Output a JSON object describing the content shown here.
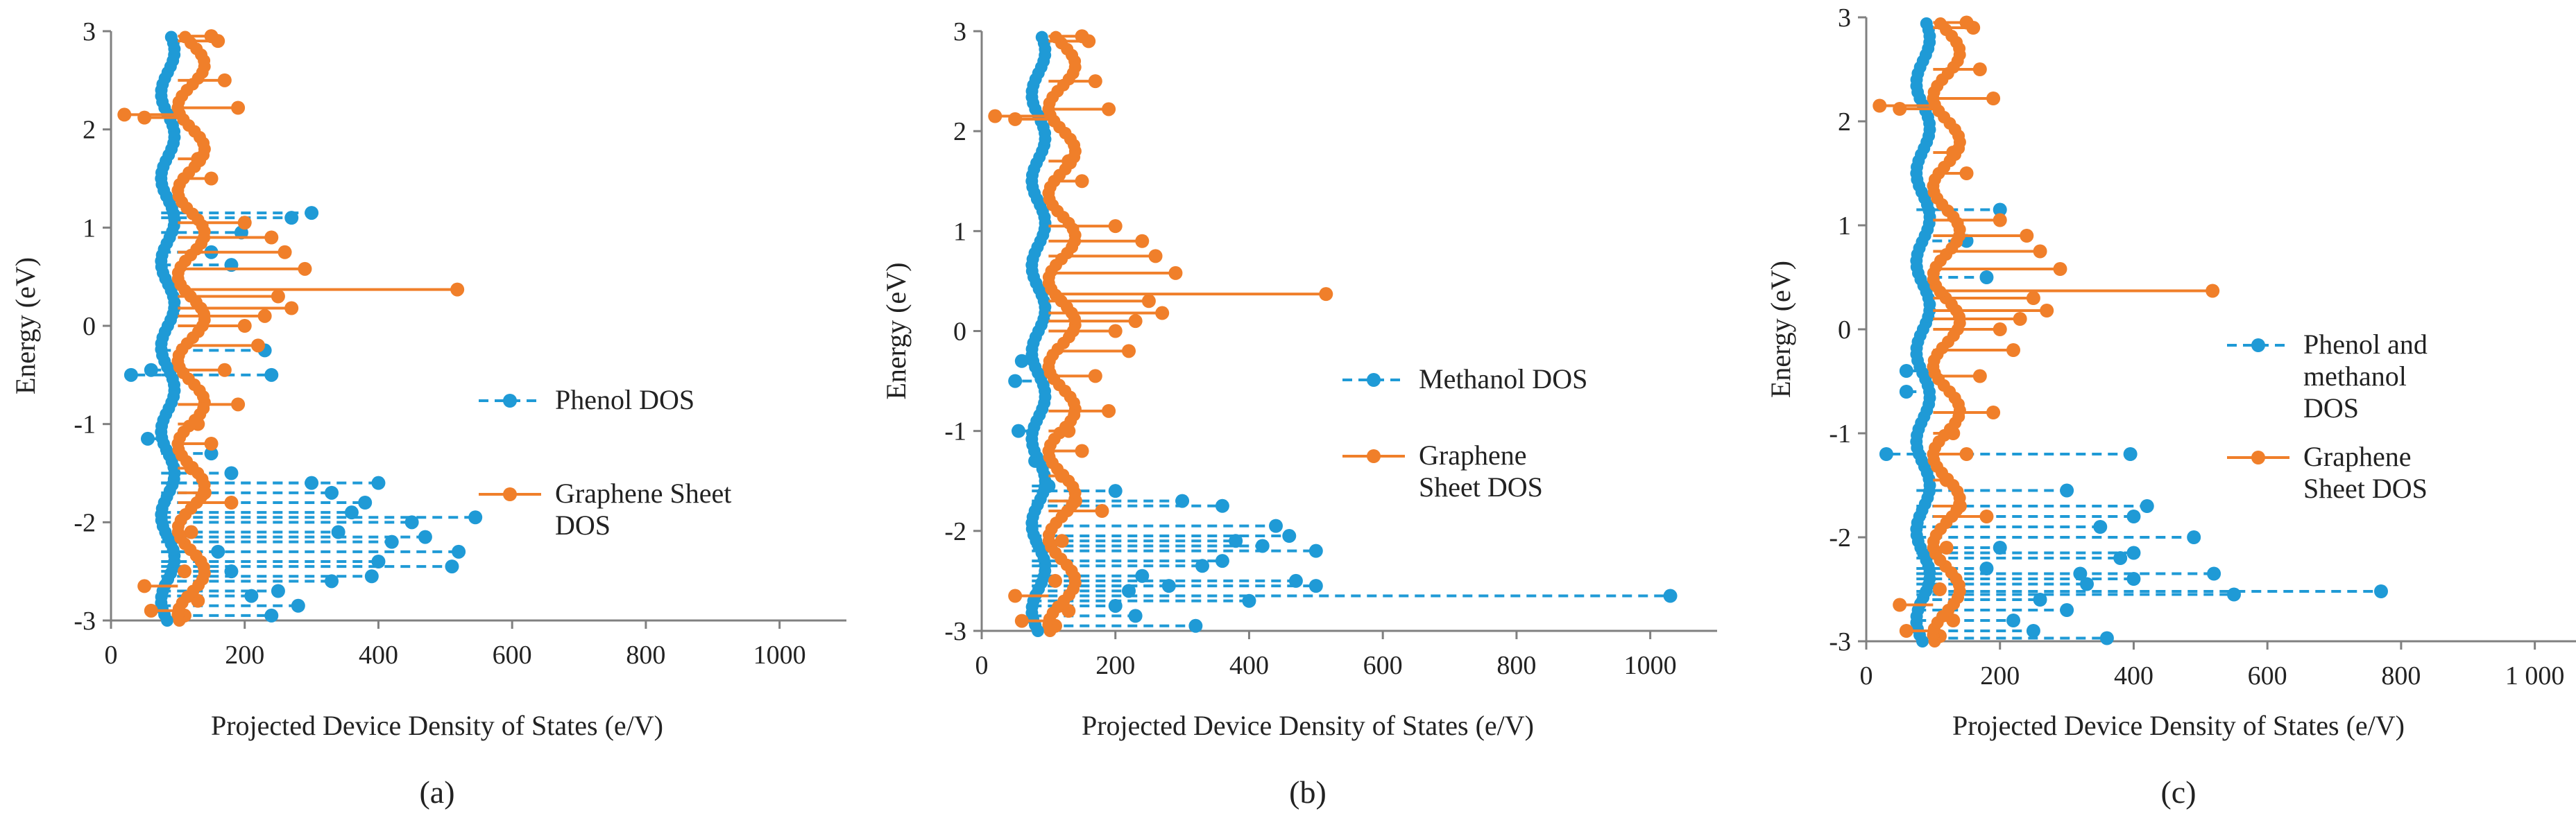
{
  "colors": {
    "phenol_like": "#1f9ad6",
    "graphene": "#f07f2a",
    "axis": "#808080"
  },
  "chart_data": [
    {
      "type": "scatter",
      "panel_label": "(a)",
      "xlabel": "Projected Device Density of States (e/V)",
      "ylabel": "Energy (eV)",
      "xlim": [
        0,
        1100
      ],
      "ylim": [
        -3,
        3
      ],
      "xticks": [
        "0",
        "200",
        "400",
        "600",
        "800",
        "1000"
      ],
      "yticks": [
        "-3",
        "-2",
        "-1",
        "0",
        "1",
        "2",
        "3"
      ],
      "legend_position": "right",
      "series": [
        {
          "name": "Phenol DOS",
          "style": "dashed-marker",
          "color": "#1f9ad6",
          "points": [
            [
              30,
              -0.5
            ],
            [
              60,
              -0.45
            ],
            [
              240,
              -0.5
            ],
            [
              230,
              -0.25
            ],
            [
              150,
              0.75
            ],
            [
              195,
              0.95
            ],
            [
              270,
              1.1
            ],
            [
              300,
              1.15
            ],
            [
              180,
              0.62
            ],
            [
              55,
              -1.15
            ],
            [
              150,
              -1.3
            ],
            [
              180,
              -1.5
            ],
            [
              300,
              -1.6
            ],
            [
              400,
              -1.6
            ],
            [
              330,
              -1.7
            ],
            [
              380,
              -1.8
            ],
            [
              360,
              -1.9
            ],
            [
              545,
              -1.95
            ],
            [
              450,
              -2.0
            ],
            [
              340,
              -2.1
            ],
            [
              470,
              -2.15
            ],
            [
              420,
              -2.2
            ],
            [
              520,
              -2.3
            ],
            [
              400,
              -2.4
            ],
            [
              510,
              -2.45
            ],
            [
              390,
              -2.55
            ],
            [
              330,
              -2.6
            ],
            [
              250,
              -2.7
            ],
            [
              210,
              -2.75
            ],
            [
              280,
              -2.85
            ],
            [
              240,
              -2.95
            ],
            [
              180,
              -2.5
            ],
            [
              160,
              -2.3
            ]
          ]
        },
        {
          "name": "Graphene Sheet DOS",
          "style": "solid-marker",
          "color": "#f07f2a",
          "points": [
            [
              20,
              2.15
            ],
            [
              50,
              2.12
            ],
            [
              190,
              2.22
            ],
            [
              170,
              2.5
            ],
            [
              160,
              2.9
            ],
            [
              150,
              2.95
            ],
            [
              130,
              1.7
            ],
            [
              150,
              1.5
            ],
            [
              200,
              1.05
            ],
            [
              240,
              0.9
            ],
            [
              260,
              0.75
            ],
            [
              290,
              0.58
            ],
            [
              518,
              0.37
            ],
            [
              250,
              0.3
            ],
            [
              270,
              0.18
            ],
            [
              230,
              0.1
            ],
            [
              200,
              0.0
            ],
            [
              220,
              -0.2
            ],
            [
              170,
              -0.45
            ],
            [
              190,
              -0.8
            ],
            [
              130,
              -1.0
            ],
            [
              150,
              -1.2
            ],
            [
              120,
              -1.45
            ],
            [
              140,
              -1.7
            ],
            [
              180,
              -1.8
            ],
            [
              120,
              -2.1
            ],
            [
              110,
              -2.5
            ],
            [
              50,
              -2.65
            ],
            [
              130,
              -2.8
            ],
            [
              110,
              -2.95
            ],
            [
              60,
              -2.9
            ]
          ]
        }
      ]
    },
    {
      "type": "scatter",
      "panel_label": "(b)",
      "xlabel": "Projected Device Density of States (e/V)",
      "ylabel": "Energy (eV)",
      "xlim": [
        0,
        1100
      ],
      "ylim": [
        -3,
        3
      ],
      "xticks": [
        "0",
        "200",
        "400",
        "600",
        "800",
        "1000"
      ],
      "yticks": [
        "-3",
        "-2",
        "-1",
        "0",
        "1",
        "2",
        "3"
      ],
      "legend_position": "right",
      "series": [
        {
          "name": "Methanol DOS",
          "style": "dashed-marker",
          "color": "#1f9ad6",
          "points": [
            [
              60,
              -0.3
            ],
            [
              50,
              -0.5
            ],
            [
              55,
              -1.0
            ],
            [
              80,
              -1.3
            ],
            [
              100,
              -1.55
            ],
            [
              200,
              -1.6
            ],
            [
              300,
              -1.7
            ],
            [
              360,
              -1.75
            ],
            [
              440,
              -1.95
            ],
            [
              460,
              -2.05
            ],
            [
              380,
              -2.1
            ],
            [
              420,
              -2.15
            ],
            [
              500,
              -2.2
            ],
            [
              360,
              -2.3
            ],
            [
              330,
              -2.35
            ],
            [
              470,
              -2.5
            ],
            [
              500,
              -2.55
            ],
            [
              280,
              -2.55
            ],
            [
              220,
              -2.6
            ],
            [
              1030,
              -2.65
            ],
            [
              400,
              -2.7
            ],
            [
              200,
              -2.75
            ],
            [
              230,
              -2.85
            ],
            [
              320,
              -2.95
            ],
            [
              240,
              -2.45
            ]
          ]
        },
        {
          "name": "Graphene Sheet DOS",
          "style": "solid-marker",
          "color": "#f07f2a",
          "points": [
            [
              20,
              2.15
            ],
            [
              50,
              2.12
            ],
            [
              190,
              2.22
            ],
            [
              170,
              2.5
            ],
            [
              160,
              2.9
            ],
            [
              150,
              2.95
            ],
            [
              130,
              1.7
            ],
            [
              150,
              1.5
            ],
            [
              200,
              1.05
            ],
            [
              240,
              0.9
            ],
            [
              260,
              0.75
            ],
            [
              290,
              0.58
            ],
            [
              515,
              0.37
            ],
            [
              250,
              0.3
            ],
            [
              270,
              0.18
            ],
            [
              230,
              0.1
            ],
            [
              200,
              0.0
            ],
            [
              220,
              -0.2
            ],
            [
              170,
              -0.45
            ],
            [
              190,
              -0.8
            ],
            [
              130,
              -1.0
            ],
            [
              150,
              -1.2
            ],
            [
              120,
              -1.45
            ],
            [
              140,
              -1.7
            ],
            [
              180,
              -1.8
            ],
            [
              120,
              -2.1
            ],
            [
              110,
              -2.5
            ],
            [
              50,
              -2.65
            ],
            [
              130,
              -2.8
            ],
            [
              110,
              -2.95
            ],
            [
              60,
              -2.9
            ]
          ]
        }
      ]
    },
    {
      "type": "scatter",
      "panel_label": "(c)",
      "xlabel": "Projected Device Density of States (e/V)",
      "ylabel": "Energy (eV)",
      "xlim": [
        0,
        1100
      ],
      "ylim": [
        -3,
        3
      ],
      "xticks": [
        "0",
        "200",
        "400",
        "600",
        "800",
        "1 000"
      ],
      "yticks": [
        "-3",
        "-2",
        "-1",
        "0",
        "1",
        "2",
        "3"
      ],
      "legend_position": "right",
      "series": [
        {
          "name": "Phenol and methanol DOS",
          "style": "dashed-marker",
          "color": "#1f9ad6",
          "points": [
            [
              30,
              -1.2
            ],
            [
              395,
              -1.2
            ],
            [
              60,
              -0.6
            ],
            [
              60,
              -0.4
            ],
            [
              200,
              1.15
            ],
            [
              150,
              0.85
            ],
            [
              180,
              0.5
            ],
            [
              300,
              -1.55
            ],
            [
              400,
              -1.8
            ],
            [
              420,
              -1.7
            ],
            [
              350,
              -1.9
            ],
            [
              490,
              -2.0
            ],
            [
              400,
              -2.15
            ],
            [
              380,
              -2.2
            ],
            [
              320,
              -2.35
            ],
            [
              520,
              -2.35
            ],
            [
              400,
              -2.4
            ],
            [
              330,
              -2.45
            ],
            [
              770,
              -2.52
            ],
            [
              550,
              -2.55
            ],
            [
              260,
              -2.6
            ],
            [
              300,
              -2.7
            ],
            [
              220,
              -2.8
            ],
            [
              250,
              -2.9
            ],
            [
              360,
              -2.97
            ],
            [
              200,
              -2.1
            ],
            [
              180,
              -2.3
            ]
          ]
        },
        {
          "name": "Graphene Sheet DOS",
          "style": "solid-marker",
          "color": "#f07f2a",
          "points": [
            [
              20,
              2.15
            ],
            [
              50,
              2.12
            ],
            [
              190,
              2.22
            ],
            [
              170,
              2.5
            ],
            [
              160,
              2.9
            ],
            [
              150,
              2.95
            ],
            [
              130,
              1.7
            ],
            [
              150,
              1.5
            ],
            [
              200,
              1.05
            ],
            [
              240,
              0.9
            ],
            [
              260,
              0.75
            ],
            [
              290,
              0.58
            ],
            [
              518,
              0.37
            ],
            [
              250,
              0.3
            ],
            [
              270,
              0.18
            ],
            [
              230,
              0.1
            ],
            [
              200,
              0.0
            ],
            [
              220,
              -0.2
            ],
            [
              170,
              -0.45
            ],
            [
              190,
              -0.8
            ],
            [
              130,
              -1.0
            ],
            [
              150,
              -1.2
            ],
            [
              120,
              -1.45
            ],
            [
              140,
              -1.7
            ],
            [
              180,
              -1.8
            ],
            [
              120,
              -2.1
            ],
            [
              110,
              -2.5
            ],
            [
              50,
              -2.65
            ],
            [
              130,
              -2.8
            ],
            [
              110,
              -2.95
            ],
            [
              60,
              -2.9
            ]
          ]
        }
      ]
    }
  ]
}
